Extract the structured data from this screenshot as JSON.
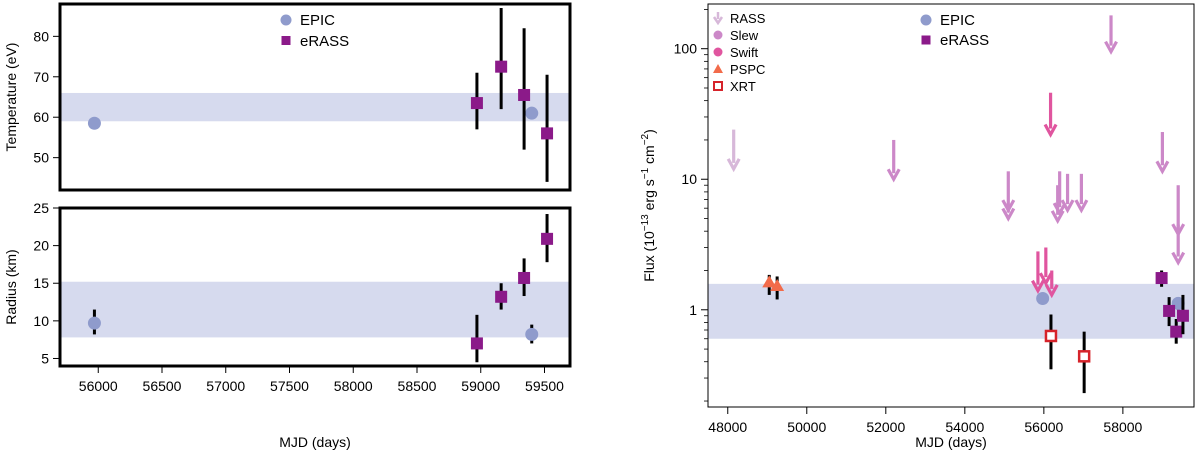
{
  "colors": {
    "epic": "#8f9bcc",
    "erass": "#8b1a89",
    "band": "#d6daee",
    "rass": "#d7b8d9",
    "slew": "#cc88c8",
    "swift": "#e0559f",
    "pspc": "#f26b4a",
    "xrt": "#d6232a",
    "errbar": "#000000"
  },
  "chart_data": [
    {
      "type": "scatter",
      "panel": "temperature",
      "ylabel": "Temperature (eV)",
      "xlim": [
        55700,
        59700
      ],
      "ylim": [
        42,
        88
      ],
      "xticks": [],
      "yticks": [
        50,
        60,
        70,
        80
      ],
      "band": [
        59,
        66
      ],
      "legend": {
        "position": "top-center",
        "entries": [
          {
            "label": "EPIC",
            "marker": "circle",
            "colorKey": "epic"
          },
          {
            "label": "eRASS",
            "marker": "square",
            "colorKey": "erass"
          }
        ]
      },
      "series": [
        {
          "name": "EPIC",
          "marker": "circle",
          "colorKey": "epic",
          "points": [
            {
              "x": 55970,
              "y": 58.5,
              "lo": 57,
              "hi": 60
            },
            {
              "x": 59400,
              "y": 61,
              "lo": 59.5,
              "hi": 62.5
            }
          ]
        },
        {
          "name": "eRASS",
          "marker": "square",
          "colorKey": "erass",
          "points": [
            {
              "x": 58970,
              "y": 63.5,
              "lo": 57,
              "hi": 71
            },
            {
              "x": 59160,
              "y": 72.5,
              "lo": 62,
              "hi": 87
            },
            {
              "x": 59340,
              "y": 65.5,
              "lo": 52,
              "hi": 82
            },
            {
              "x": 59520,
              "y": 56,
              "lo": 44,
              "hi": 70.5
            }
          ]
        }
      ]
    },
    {
      "type": "scatter",
      "panel": "radius",
      "ylabel": "Radius (km)",
      "xlabel": "MJD (days)",
      "xlim": [
        55700,
        59700
      ],
      "ylim": [
        4,
        25
      ],
      "xticks": [
        56000,
        56500,
        57000,
        57500,
        58000,
        58500,
        59000,
        59500
      ],
      "yticks": [
        5,
        10,
        15,
        20,
        25
      ],
      "band": [
        7.8,
        15.2
      ],
      "series": [
        {
          "name": "EPIC",
          "marker": "circle",
          "colorKey": "epic",
          "points": [
            {
              "x": 55970,
              "y": 9.7,
              "lo": 8.2,
              "hi": 11.5
            },
            {
              "x": 59400,
              "y": 8.2,
              "lo": 7,
              "hi": 9.5
            }
          ]
        },
        {
          "name": "eRASS",
          "marker": "square",
          "colorKey": "erass",
          "points": [
            {
              "x": 58970,
              "y": 7,
              "lo": 4.5,
              "hi": 10.8
            },
            {
              "x": 59160,
              "y": 13.2,
              "lo": 11.5,
              "hi": 15
            },
            {
              "x": 59340,
              "y": 15.7,
              "lo": 13.3,
              "hi": 18.3
            },
            {
              "x": 59520,
              "y": 20.9,
              "lo": 17.8,
              "hi": 24.2
            }
          ]
        }
      ]
    },
    {
      "type": "scatter",
      "panel": "flux",
      "ylabel_main": "Flux (10",
      "ylabel_exp1": "−13",
      "ylabel_mid": " erg s",
      "ylabel_exp2": "−1",
      "ylabel_mid2": " cm",
      "ylabel_exp3": "−2",
      "ylabel_end": ")",
      "xlabel": "MJD (days)",
      "xlim": [
        47500,
        59800
      ],
      "yscale": "log",
      "ylim": [
        0.18,
        220
      ],
      "xticks": [
        48000,
        50000,
        52000,
        54000,
        56000,
        58000
      ],
      "yticks": [
        1,
        10,
        100
      ],
      "band": [
        0.6,
        1.58
      ],
      "legend_left": [
        {
          "label": "RASS",
          "marker": "arrow",
          "colorKey": "rass"
        },
        {
          "label": "Slew",
          "marker": "circle",
          "colorKey": "slew"
        },
        {
          "label": "Swift",
          "marker": "circle",
          "colorKey": "swift"
        },
        {
          "label": "PSPC",
          "marker": "triangle",
          "colorKey": "pspc"
        },
        {
          "label": "XRT",
          "marker": "opensquare",
          "colorKey": "xrt"
        }
      ],
      "legend_right": [
        {
          "label": "EPIC",
          "marker": "circle",
          "colorKey": "epic"
        },
        {
          "label": "eRASS",
          "marker": "square",
          "colorKey": "erass"
        }
      ],
      "upper_limits": [
        {
          "x": 48150,
          "top": 24,
          "bottom": 12,
          "colorKey": "rass"
        },
        {
          "x": 52200,
          "top": 20,
          "bottom": 10,
          "colorKey": "slew"
        },
        {
          "x": 55100,
          "top": 11.5,
          "bottom": 5.8,
          "colorKey": "slew"
        },
        {
          "x": 55100,
          "top": 6.5,
          "bottom": 5,
          "colorKey": "slew"
        },
        {
          "x": 56350,
          "top": 9,
          "bottom": 4.8,
          "colorKey": "slew"
        },
        {
          "x": 56400,
          "top": 11.5,
          "bottom": 5.5,
          "colorKey": "slew"
        },
        {
          "x": 56600,
          "top": 11,
          "bottom": 5.8,
          "colorKey": "slew"
        },
        {
          "x": 56950,
          "top": 11,
          "bottom": 5.8,
          "colorKey": "slew"
        },
        {
          "x": 57700,
          "top": 180,
          "bottom": 95,
          "colorKey": "slew"
        },
        {
          "x": 59000,
          "top": 23,
          "bottom": 11.5,
          "colorKey": "slew"
        },
        {
          "x": 59400,
          "top": 9,
          "bottom": 3.8,
          "colorKey": "slew"
        },
        {
          "x": 59400,
          "top": 4.5,
          "bottom": 2.3,
          "colorKey": "slew"
        },
        {
          "x": 55850,
          "top": 2.8,
          "bottom": 1.4,
          "colorKey": "swift"
        },
        {
          "x": 56050,
          "top": 3,
          "bottom": 1.6,
          "colorKey": "swift"
        },
        {
          "x": 56170,
          "top": 46,
          "bottom": 22,
          "colorKey": "swift"
        },
        {
          "x": 56200,
          "top": 2,
          "bottom": 1.3,
          "colorKey": "swift"
        }
      ],
      "series": [
        {
          "name": "PSPC",
          "marker": "triangle",
          "colorKey": "pspc",
          "points": [
            {
              "x": 49050,
              "y": 1.62,
              "lo": 1.3,
              "hi": 1.85
            },
            {
              "x": 49250,
              "y": 1.52,
              "lo": 1.2,
              "hi": 1.8
            }
          ]
        },
        {
          "name": "EPIC",
          "marker": "circle",
          "colorKey": "epic",
          "points": [
            {
              "x": 55970,
              "y": 1.22,
              "lo": 1.1,
              "hi": 1.35
            },
            {
              "x": 59400,
              "y": 1.12,
              "lo": 1.0,
              "hi": 1.25
            }
          ]
        },
        {
          "name": "XRT",
          "marker": "opensquare",
          "colorKey": "xrt",
          "points": [
            {
              "x": 56180,
              "y": 0.63,
              "lo": 0.35,
              "hi": 0.92
            },
            {
              "x": 57020,
              "y": 0.44,
              "lo": 0.23,
              "hi": 0.68
            }
          ]
        },
        {
          "name": "eRASS",
          "marker": "square",
          "colorKey": "erass",
          "points": [
            {
              "x": 58980,
              "y": 1.75,
              "lo": 1.5,
              "hi": 2.0
            },
            {
              "x": 59170,
              "y": 0.98,
              "lo": 0.75,
              "hi": 1.25
            },
            {
              "x": 59350,
              "y": 0.68,
              "lo": 0.55,
              "hi": 0.85
            },
            {
              "x": 59520,
              "y": 0.9,
              "lo": 0.65,
              "hi": 1.3
            }
          ]
        }
      ]
    }
  ]
}
